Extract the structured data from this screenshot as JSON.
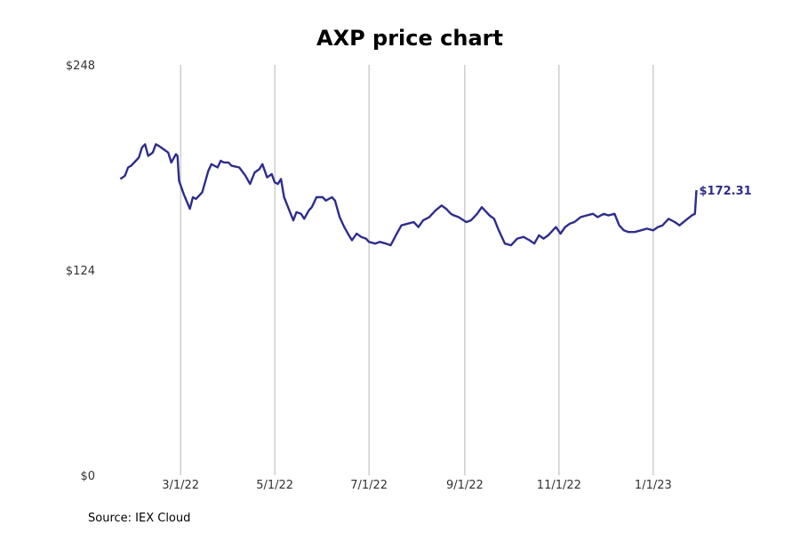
{
  "colors": {
    "line": "#2e2d8c",
    "grid": "#b5b5b5"
  },
  "source": "Source: IEX Cloud",
  "chart_data": {
    "type": "line",
    "title": "AXP price chart",
    "xlabel": "",
    "ylabel": "",
    "x_range": [
      "2022-01-11",
      "2023-02-19"
    ],
    "ylim": [
      0,
      248
    ],
    "y_ticks": [
      {
        "value": 0,
        "label": "$0"
      },
      {
        "value": 124,
        "label": "$124"
      },
      {
        "value": 248,
        "label": "$248"
      }
    ],
    "x_ticks": [
      {
        "date": "2022-03-01",
        "label": "3/1/22"
      },
      {
        "date": "2022-05-01",
        "label": "5/1/22"
      },
      {
        "date": "2022-07-01",
        "label": "7/1/22"
      },
      {
        "date": "2022-09-01",
        "label": "9/1/22"
      },
      {
        "date": "2022-11-01",
        "label": "11/1/22"
      },
      {
        "date": "2023-01-01",
        "label": "1/1/23"
      }
    ],
    "grid": "vertical at x ticks",
    "end_label": "$172.31",
    "series": [
      {
        "points": [
          [
            "2022-01-21",
            179
          ],
          [
            "2022-01-24",
            181
          ],
          [
            "2022-01-26",
            186
          ],
          [
            "2022-01-28",
            187
          ],
          [
            "2022-01-31",
            190
          ],
          [
            "2022-02-02",
            192
          ],
          [
            "2022-02-04",
            198
          ],
          [
            "2022-02-06",
            200
          ],
          [
            "2022-02-08",
            193
          ],
          [
            "2022-02-11",
            195
          ],
          [
            "2022-02-13",
            200
          ],
          [
            "2022-02-15",
            199
          ],
          [
            "2022-02-18",
            197
          ],
          [
            "2022-02-21",
            195
          ],
          [
            "2022-02-23",
            189
          ],
          [
            "2022-02-26",
            194
          ],
          [
            "2022-02-27",
            193
          ],
          [
            "2022-02-28",
            178
          ],
          [
            "2022-03-03",
            170
          ],
          [
            "2022-03-07",
            161
          ],
          [
            "2022-03-09",
            168
          ],
          [
            "2022-03-11",
            167
          ],
          [
            "2022-03-15",
            171
          ],
          [
            "2022-03-19",
            184
          ],
          [
            "2022-03-21",
            188
          ],
          [
            "2022-03-25",
            186
          ],
          [
            "2022-03-27",
            190
          ],
          [
            "2022-03-29",
            189
          ],
          [
            "2022-04-01",
            189
          ],
          [
            "2022-04-03",
            187
          ],
          [
            "2022-04-08",
            186
          ],
          [
            "2022-04-12",
            181
          ],
          [
            "2022-04-15",
            176
          ],
          [
            "2022-04-18",
            183
          ],
          [
            "2022-04-21",
            185
          ],
          [
            "2022-04-23",
            188
          ],
          [
            "2022-04-26",
            180
          ],
          [
            "2022-04-29",
            182
          ],
          [
            "2022-05-01",
            177
          ],
          [
            "2022-05-03",
            176
          ],
          [
            "2022-05-05",
            179
          ],
          [
            "2022-05-07",
            168
          ],
          [
            "2022-05-10",
            161
          ],
          [
            "2022-05-13",
            154
          ],
          [
            "2022-05-15",
            159
          ],
          [
            "2022-05-18",
            158
          ],
          [
            "2022-05-20",
            155
          ],
          [
            "2022-05-23",
            160
          ],
          [
            "2022-05-25",
            162
          ],
          [
            "2022-05-28",
            168
          ],
          [
            "2022-06-01",
            168
          ],
          [
            "2022-06-03",
            166
          ],
          [
            "2022-06-07",
            168
          ],
          [
            "2022-06-09",
            166
          ],
          [
            "2022-06-12",
            156
          ],
          [
            "2022-06-15",
            150
          ],
          [
            "2022-06-18",
            145
          ],
          [
            "2022-06-20",
            142
          ],
          [
            "2022-06-23",
            146
          ],
          [
            "2022-06-26",
            144
          ],
          [
            "2022-06-29",
            143
          ],
          [
            "2022-07-01",
            141
          ],
          [
            "2022-07-05",
            140
          ],
          [
            "2022-07-08",
            141
          ],
          [
            "2022-07-12",
            140
          ],
          [
            "2022-07-15",
            139
          ],
          [
            "2022-07-19",
            146
          ],
          [
            "2022-07-22",
            151
          ],
          [
            "2022-07-26",
            152
          ],
          [
            "2022-07-30",
            153
          ],
          [
            "2022-08-02",
            150
          ],
          [
            "2022-08-05",
            154
          ],
          [
            "2022-08-09",
            156
          ],
          [
            "2022-08-13",
            160
          ],
          [
            "2022-08-17",
            163
          ],
          [
            "2022-08-20",
            161
          ],
          [
            "2022-08-23",
            158
          ],
          [
            "2022-08-25",
            157
          ],
          [
            "2022-08-28",
            156
          ],
          [
            "2022-09-02",
            153
          ],
          [
            "2022-09-05",
            154
          ],
          [
            "2022-09-09",
            158
          ],
          [
            "2022-09-12",
            162
          ],
          [
            "2022-09-14",
            160
          ],
          [
            "2022-09-17",
            157
          ],
          [
            "2022-09-20",
            155
          ],
          [
            "2022-09-23",
            148
          ],
          [
            "2022-09-27",
            140
          ],
          [
            "2022-10-01",
            139
          ],
          [
            "2022-10-05",
            143
          ],
          [
            "2022-10-09",
            144
          ],
          [
            "2022-10-13",
            142
          ],
          [
            "2022-10-16",
            140
          ],
          [
            "2022-10-19",
            145
          ],
          [
            "2022-10-22",
            143
          ],
          [
            "2022-10-25",
            145
          ],
          [
            "2022-10-28",
            148
          ],
          [
            "2022-10-30",
            150
          ],
          [
            "2022-11-02",
            146
          ],
          [
            "2022-11-05",
            150
          ],
          [
            "2022-11-08",
            152
          ],
          [
            "2022-11-11",
            153
          ],
          [
            "2022-11-15",
            156
          ],
          [
            "2022-11-19",
            157
          ],
          [
            "2022-11-23",
            158
          ],
          [
            "2022-11-26",
            156
          ],
          [
            "2022-11-30",
            158
          ],
          [
            "2022-12-03",
            157
          ],
          [
            "2022-12-07",
            158
          ],
          [
            "2022-12-10",
            151
          ],
          [
            "2022-12-13",
            148
          ],
          [
            "2022-12-16",
            147
          ],
          [
            "2022-12-20",
            147
          ],
          [
            "2022-12-24",
            148
          ],
          [
            "2022-12-28",
            149
          ],
          [
            "2023-01-01",
            148
          ],
          [
            "2023-01-04",
            150
          ],
          [
            "2023-01-07",
            151
          ],
          [
            "2023-01-11",
            155
          ],
          [
            "2023-01-15",
            153
          ],
          [
            "2023-01-18",
            151
          ],
          [
            "2023-01-22",
            154
          ],
          [
            "2023-01-26",
            157
          ],
          [
            "2023-01-28",
            158
          ],
          [
            "2023-01-29",
            172.31
          ]
        ]
      }
    ]
  }
}
